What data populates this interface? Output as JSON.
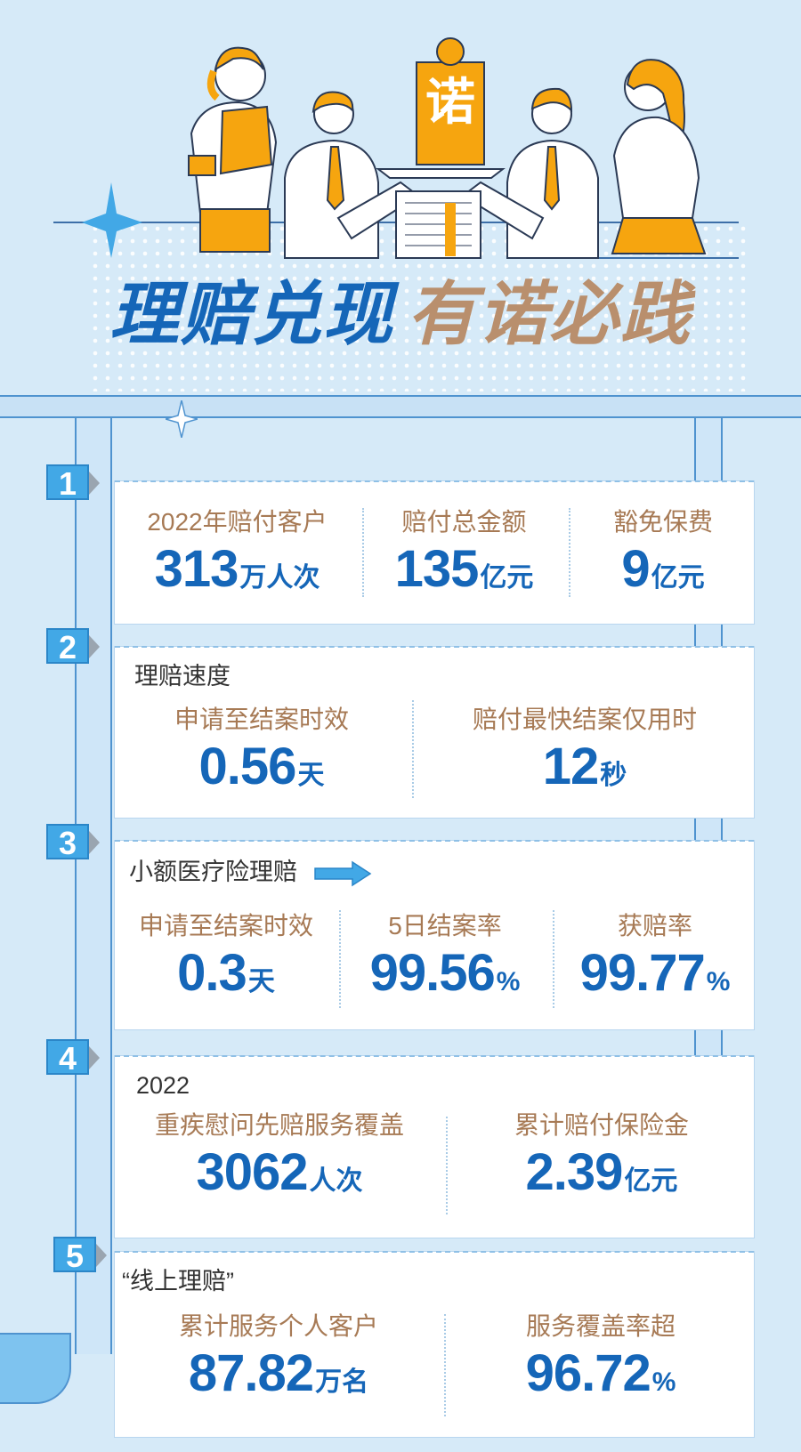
{
  "headline": {
    "part1": "理赔兑现",
    "part2": "有诺必践",
    "badge": "诺"
  },
  "colors": {
    "blue": "#1566b8",
    "tan": "#a77a55",
    "accent": "#f6a50f",
    "tab": "#42a8e6",
    "background": "#d6eaf8"
  },
  "sections": {
    "s1": {
      "num": "1",
      "items": [
        {
          "label": "2022年赔付客户",
          "value": "313",
          "unit": "万人次"
        },
        {
          "label": "赔付总金额",
          "value": "135",
          "unit": "亿元"
        },
        {
          "label": "豁免保费",
          "value": "9",
          "unit": "亿元"
        }
      ]
    },
    "s2": {
      "num": "2",
      "subtitle": "理赔速度",
      "items": [
        {
          "label": "申请至结案时效",
          "value": "0.56",
          "unit": "天"
        },
        {
          "label": "赔付最快结案仅用时",
          "value": "12",
          "unit": "秒"
        }
      ]
    },
    "s3": {
      "num": "3",
      "subtitle": "小额医疗险理赔",
      "items": [
        {
          "label": "申请至结案时效",
          "value": "0.3",
          "unit": "天"
        },
        {
          "label": "5日结案率",
          "value": "99.56",
          "unit": "%"
        },
        {
          "label": "获赔率",
          "value": "99.77",
          "unit": "%"
        }
      ]
    },
    "s4": {
      "num": "4",
      "subtitle": "2022",
      "items": [
        {
          "label": "重疾慰问先赔服务覆盖",
          "value": "3062",
          "unit": "人次"
        },
        {
          "label": "累计赔付保险金",
          "value": "2.39",
          "unit": "亿元"
        }
      ]
    },
    "s5": {
      "num": "5",
      "subtitle": "“线上理赔”",
      "items": [
        {
          "label": "累计服务个人客户",
          "value": "87.82",
          "unit": "万名"
        },
        {
          "label": "服务覆盖率超",
          "value": "96.72",
          "unit": "%"
        }
      ]
    }
  }
}
